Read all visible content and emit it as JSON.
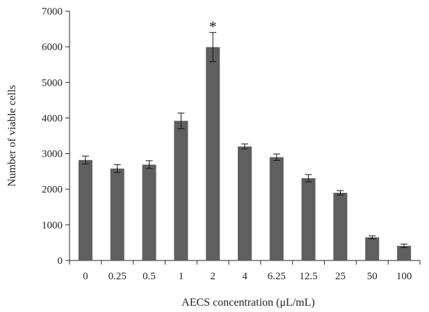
{
  "chart_data": {
    "type": "bar",
    "title": "",
    "xlabel": "AECS concentration (μL/mL)",
    "ylabel": "Number of viable cells",
    "categories": [
      "0",
      "0.25",
      "0.5",
      "1",
      "2",
      "4",
      "6.25",
      "12.5",
      "25",
      "50",
      "100"
    ],
    "values": [
      2820,
      2580,
      2690,
      3920,
      5990,
      3200,
      2900,
      2310,
      1900,
      650,
      410
    ],
    "errors": [
      110,
      110,
      110,
      220,
      410,
      70,
      90,
      100,
      60,
      40,
      50
    ],
    "yticks": [
      0,
      1000,
      2000,
      3000,
      4000,
      5000,
      6000,
      7000
    ],
    "ylim": [
      0,
      7000
    ],
    "grid": false,
    "bar_color": "#5f5f5f",
    "annotations": [
      {
        "category": "2",
        "text": "*"
      }
    ]
  }
}
